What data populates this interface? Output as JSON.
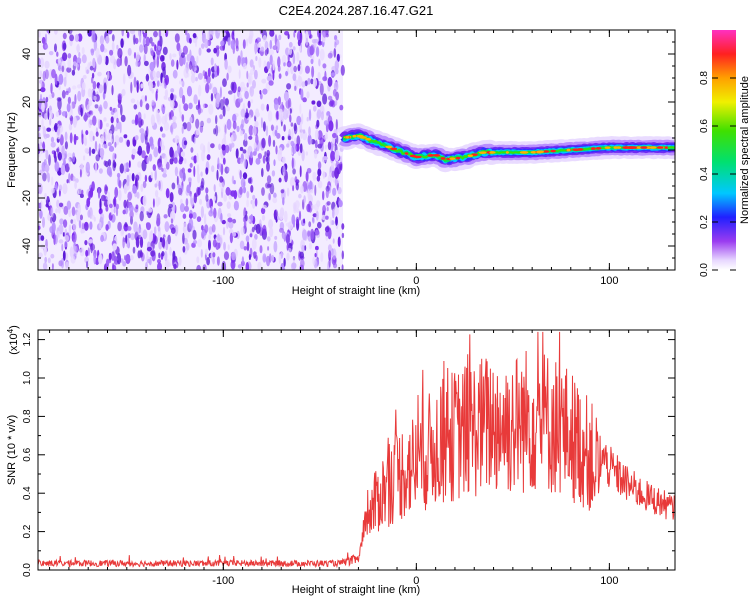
{
  "title": "C2E4.2024.287.16.47.G21",
  "chart_data": [
    {
      "type": "heatmap",
      "xlabel": "Height of straight line (km)",
      "ylabel": "Frequency (Hz)",
      "xlim": [
        -196,
        134
      ],
      "ylim": [
        -50,
        50
      ],
      "xticks": [
        -100,
        0,
        100
      ],
      "yticks": [
        -40,
        -20,
        0,
        20,
        40
      ],
      "noise_region_x": [
        -196,
        -38
      ],
      "ridge": [
        {
          "x": -38,
          "y": 5
        },
        {
          "x": -30,
          "y": 6
        },
        {
          "x": -20,
          "y": 3
        },
        {
          "x": -10,
          "y": 0
        },
        {
          "x": 0,
          "y": -3
        },
        {
          "x": 10,
          "y": -2
        },
        {
          "x": 15,
          "y": -4
        },
        {
          "x": 25,
          "y": -3
        },
        {
          "x": 35,
          "y": -1
        },
        {
          "x": 60,
          "y": -1
        },
        {
          "x": 80,
          "y": 0
        },
        {
          "x": 100,
          "y": 1
        },
        {
          "x": 134,
          "y": 1
        }
      ],
      "colorbar": {
        "label": "Normalized spectral amplitude",
        "range": [
          0,
          1
        ],
        "ticks": [
          0.0,
          0.2,
          0.4,
          0.6,
          0.8
        ]
      }
    },
    {
      "type": "line",
      "xlabel": "Height of straight line (km)",
      "ylabel": "SNR (10 * v/v)",
      "yscale_label": "(x10",
      "yscale_exp": "4",
      "yscale_close": ")",
      "xlim": [
        -196,
        134
      ],
      "ylim": [
        0,
        1.25
      ],
      "xticks": [
        -100,
        0,
        100
      ],
      "yticks": [
        0.0,
        0.2,
        0.4,
        0.6,
        0.8,
        1.0,
        1.2
      ],
      "color": "#e83a3a",
      "envelope": [
        {
          "x": -196,
          "y": 0.03
        },
        {
          "x": -40,
          "y": 0.03
        },
        {
          "x": -30,
          "y": 0.05
        },
        {
          "x": -27,
          "y": 0.22
        },
        {
          "x": -20,
          "y": 0.42
        },
        {
          "x": -10,
          "y": 0.55
        },
        {
          "x": 0,
          "y": 0.62
        },
        {
          "x": 10,
          "y": 0.72
        },
        {
          "x": 20,
          "y": 0.78
        },
        {
          "x": 30,
          "y": 0.82
        },
        {
          "x": 40,
          "y": 0.85
        },
        {
          "x": 50,
          "y": 0.84
        },
        {
          "x": 60,
          "y": 0.88
        },
        {
          "x": 70,
          "y": 0.85
        },
        {
          "x": 80,
          "y": 0.78
        },
        {
          "x": 90,
          "y": 0.66
        },
        {
          "x": 100,
          "y": 0.52
        },
        {
          "x": 110,
          "y": 0.43
        },
        {
          "x": 120,
          "y": 0.37
        },
        {
          "x": 134,
          "y": 0.31
        }
      ]
    }
  ]
}
